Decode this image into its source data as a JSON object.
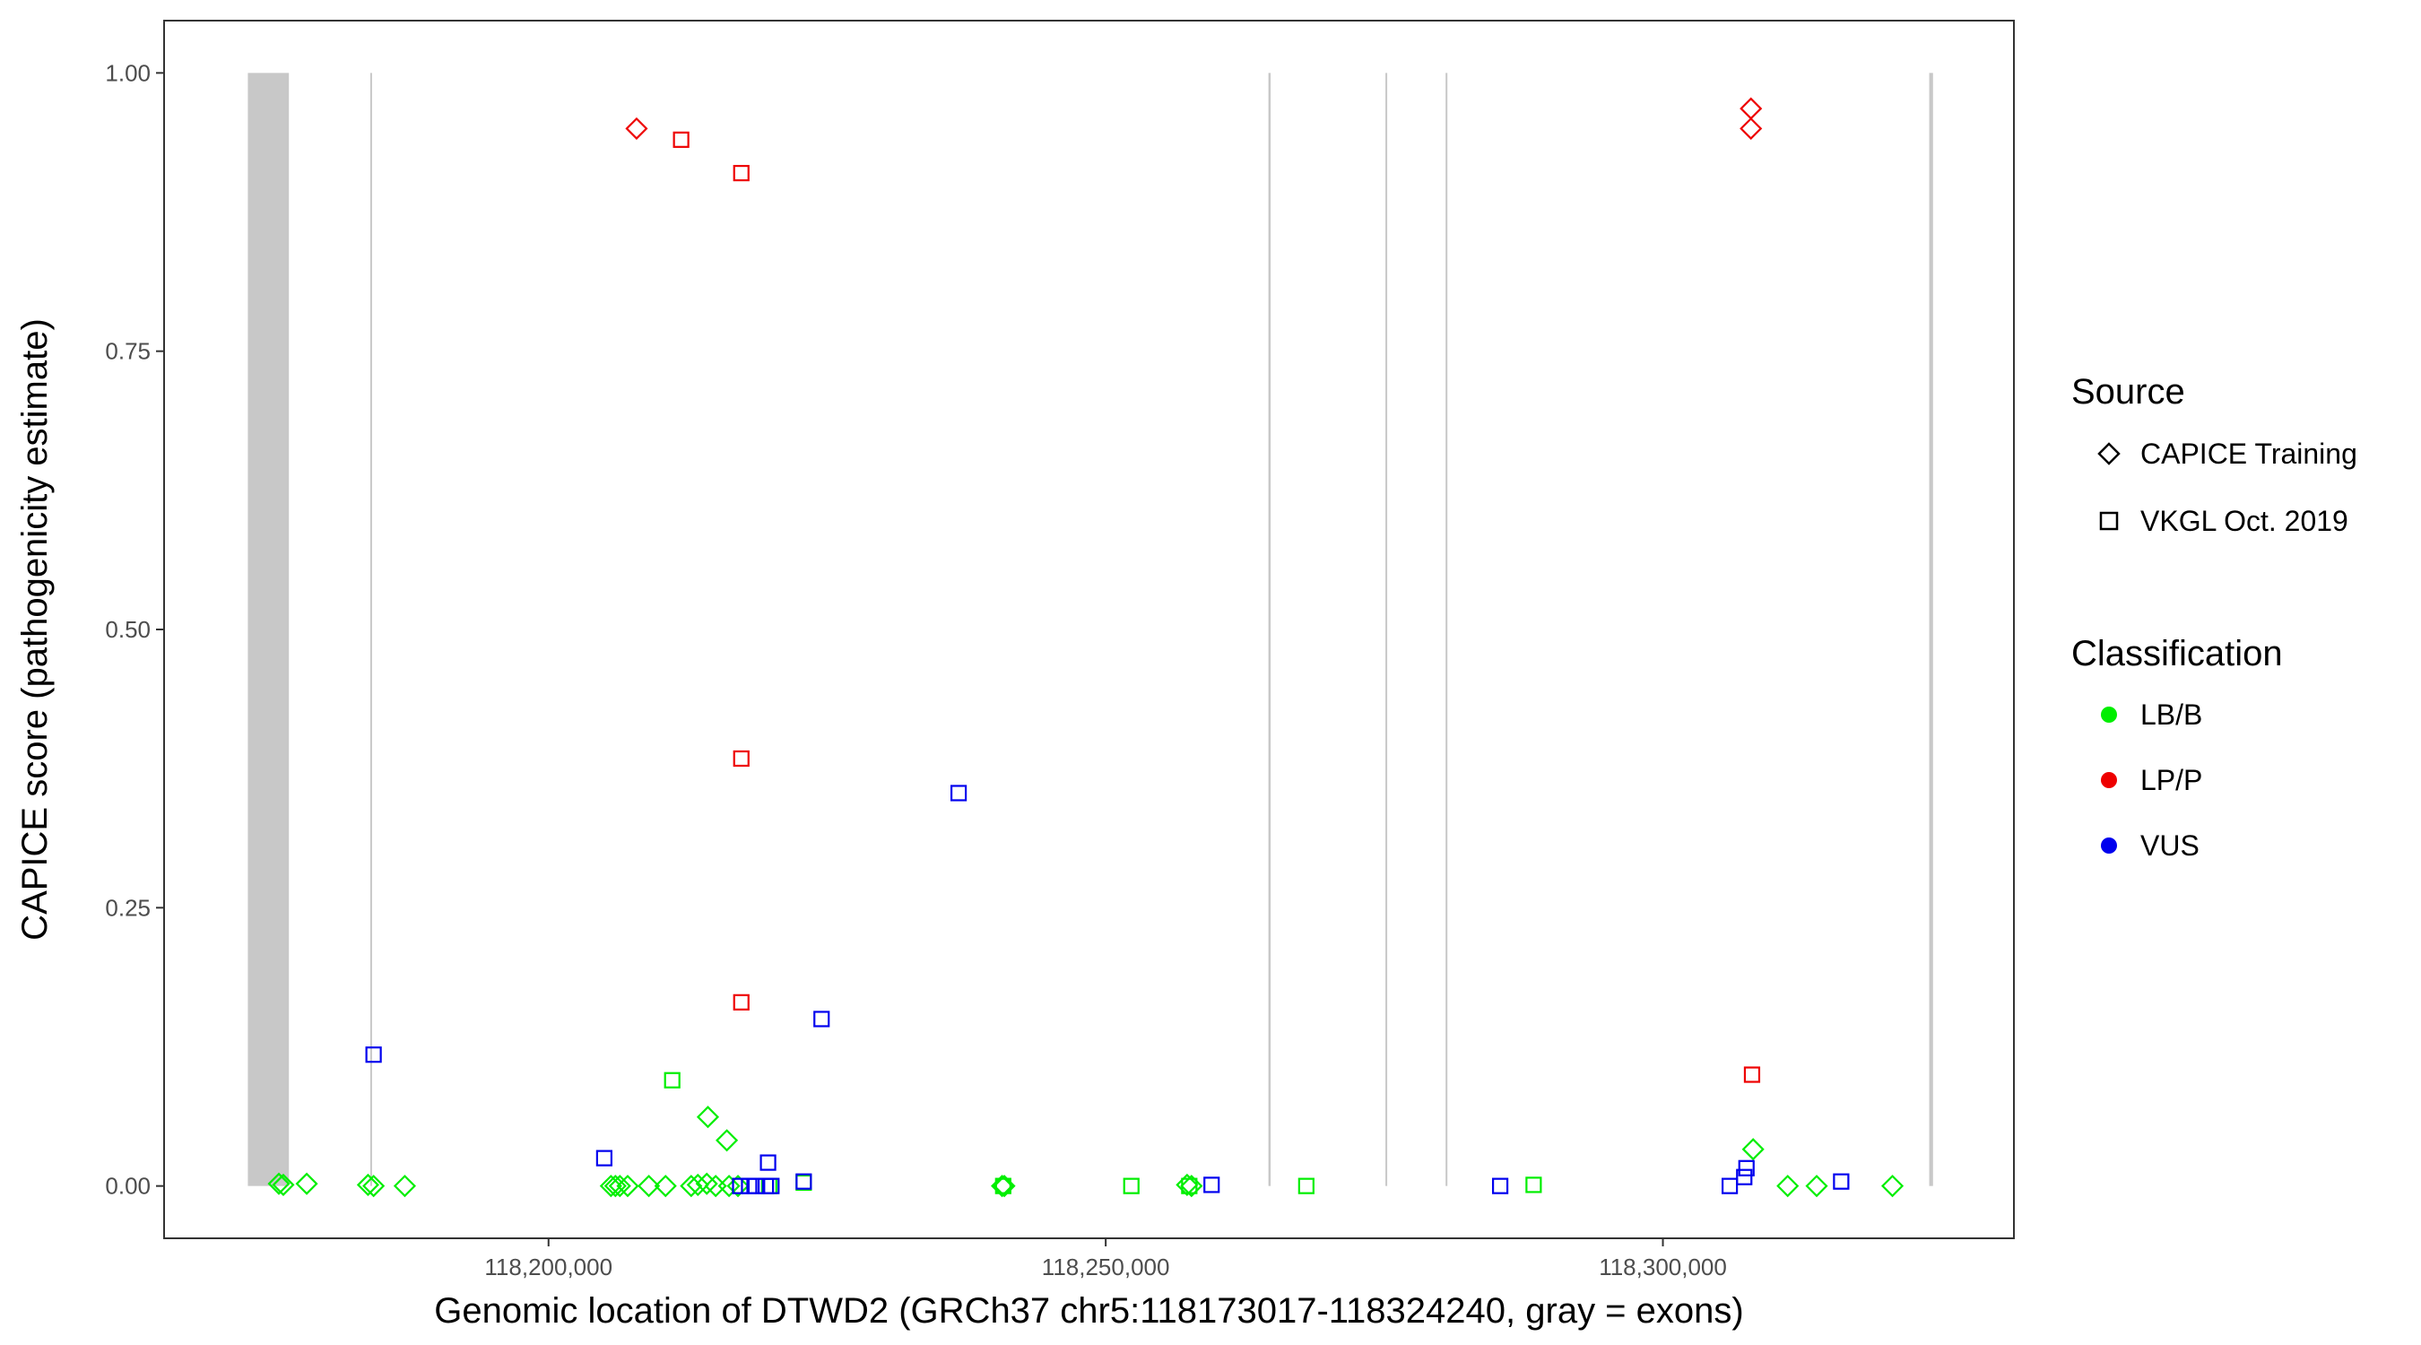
{
  "chart_data": {
    "type": "scatter",
    "xlabel": "Genomic location of DTWD2 (GRCh37 chr5:118173017-118324240, gray = exons)",
    "ylabel": "CAPICE score (pathogenicity estimate)",
    "xlim": [
      118165500,
      118331500
    ],
    "ylim": [
      -0.047,
      1.047
    ],
    "x_ticks": [
      {
        "value": 118200000,
        "label": "118,200,000"
      },
      {
        "value": 118250000,
        "label": "118,250,000"
      },
      {
        "value": 118300000,
        "label": "118,300,000"
      }
    ],
    "y_ticks": [
      {
        "value": 0.0,
        "label": "0.00"
      },
      {
        "value": 0.25,
        "label": "0.25"
      },
      {
        "value": 0.5,
        "label": "0.50"
      },
      {
        "value": 0.75,
        "label": "0.75"
      },
      {
        "value": 1.0,
        "label": "1.00"
      }
    ],
    "grid": false,
    "exons": [
      {
        "start": 118173017,
        "end": 118176700
      },
      {
        "start": 118184000,
        "end": 118184150
      },
      {
        "start": 118264600,
        "end": 118264800
      },
      {
        "start": 118275100,
        "end": 118275250
      },
      {
        "start": 118280500,
        "end": 118280650
      },
      {
        "start": 118323900,
        "end": 118324240
      }
    ],
    "legend": {
      "position": "right",
      "source_title": "Source",
      "source_entries": [
        {
          "label": "CAPICE Training",
          "shape": "diamond"
        },
        {
          "label": "VKGL Oct. 2019",
          "shape": "square"
        }
      ],
      "class_title": "Classification",
      "class_entries": [
        {
          "label": "LB/B",
          "color": "#00ee00"
        },
        {
          "label": "LP/P",
          "color": "#ee0000"
        },
        {
          "label": "VUS",
          "color": "#0000ee"
        }
      ]
    },
    "series": [
      {
        "source": "CAPICE Training",
        "classification": "LB/B",
        "shape": "diamond",
        "color": "#00ee00",
        "x": [
          118175800,
          118176200,
          118178300,
          118183800,
          118184300,
          118187100,
          118205600,
          118206000,
          118206400,
          118207100,
          118209000,
          118210500,
          118212800,
          118213400,
          118214200,
          118215000,
          118214300,
          118216000,
          118216200,
          118217000,
          118240700,
          118240900,
          118257300,
          118257700,
          118308100,
          118311200,
          118313800,
          118320600
        ],
        "y": [
          0.002,
          0.001,
          0.002,
          0.001,
          0.0,
          0.0,
          0.0,
          0.0,
          0.0,
          0.0,
          0.0,
          0.0,
          0.0,
          0.001,
          0.002,
          0.0,
          0.062,
          0.041,
          0.0,
          0.0,
          0.0,
          0.0,
          0.001,
          0.0,
          0.033,
          0.0,
          0.0,
          0.0
        ]
      },
      {
        "source": "CAPICE Training",
        "classification": "LP/P",
        "shape": "diamond",
        "color": "#ee0000",
        "x": [
          118207900,
          118307900,
          118307900
        ],
        "y": [
          0.95,
          0.968,
          0.95
        ]
      },
      {
        "source": "CAPICE Training",
        "classification": "VUS",
        "shape": "diamond",
        "color": "#0000ee",
        "x": [],
        "y": []
      },
      {
        "source": "VKGL Oct. 2019",
        "classification": "LB/B",
        "shape": "square",
        "color": "#00ee00",
        "x": [
          118211100,
          118219800,
          118222900,
          118240800,
          118252300,
          118257500,
          118268000,
          118288400
        ],
        "y": [
          0.095,
          0.0,
          0.003,
          0.0,
          0.0,
          0.0,
          0.0,
          0.001
        ]
      },
      {
        "source": "VKGL Oct. 2019",
        "classification": "LP/P",
        "shape": "square",
        "color": "#ee0000",
        "x": [
          118211900,
          118217300,
          118217300,
          118217300,
          118308000
        ],
        "y": [
          0.94,
          0.91,
          0.384,
          0.165,
          0.1
        ]
      },
      {
        "source": "VKGL Oct. 2019",
        "classification": "VUS",
        "shape": "square",
        "color": "#0000ee",
        "x": [
          118184300,
          118205000,
          118217200,
          118218000,
          118218600,
          118219500,
          118220000,
          118219700,
          118224500,
          118222900,
          118236800,
          118259500,
          118285400,
          118306000,
          118307300,
          118307500,
          118316000
        ],
        "y": [
          0.118,
          0.025,
          0.0,
          0.0,
          0.0,
          0.0,
          0.0,
          0.021,
          0.15,
          0.004,
          0.353,
          0.001,
          0.0,
          0.0,
          0.008,
          0.016,
          0.004
        ]
      }
    ]
  }
}
